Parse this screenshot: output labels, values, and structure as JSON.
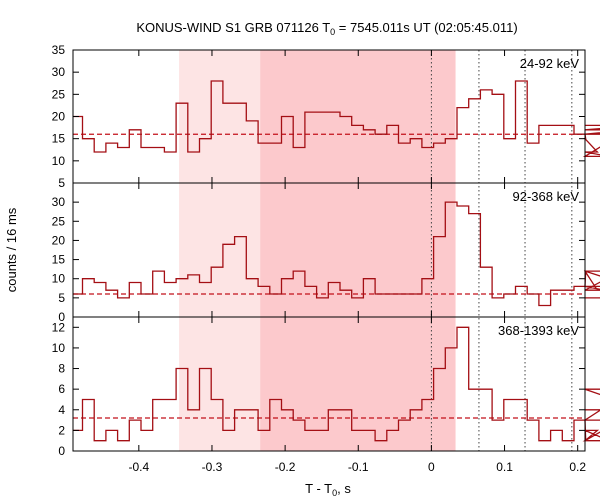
{
  "chart_data": {
    "type": "line",
    "title_main": "KONUS-WIND S1 GRB 071126 T",
    "title_sub": "0",
    "title_rest": " = 7545.011s UT (02:05:45.011)",
    "xlabel_main": "T - T",
    "xlabel_sub": "0",
    "xlabel_rest": ", s",
    "ylabel": "counts / 16 ms",
    "xlim": [
      -0.49,
      0.21
    ],
    "x_ticks": [
      -0.4,
      -0.3,
      -0.2,
      -0.1,
      0,
      0.1,
      0.2
    ],
    "x_tick_labels": [
      "-0.4",
      "-0.3",
      "-0.2",
      "-0.1",
      "0",
      "0.1",
      "0.2"
    ],
    "bin_width": 0.016,
    "bin_start": -0.493,
    "shaded_regions": [
      {
        "x0": -0.345,
        "x1": 0.033,
        "color": "#fde4e4"
      },
      {
        "x0": -0.234,
        "x1": 0.033,
        "color": "#fcc9cc"
      }
    ],
    "vlines": [
      0,
      0.065,
      0.128,
      0.192
    ],
    "line_color": "#a40f14",
    "bg_line_color": "#c2101a",
    "panels": [
      {
        "label": "24-92 keV",
        "ylim": [
          5,
          35
        ],
        "yticks": [
          5,
          10,
          15,
          20,
          25,
          30,
          35
        ],
        "background": 16,
        "values": [
          20,
          15,
          12,
          14,
          13,
          17,
          13,
          13,
          12,
          23,
          12,
          15,
          28,
          23,
          23,
          19,
          14,
          14,
          20,
          13,
          21,
          21,
          21,
          20,
          18,
          17,
          16,
          18,
          14,
          15,
          13,
          14,
          15,
          22,
          24,
          26,
          25,
          15,
          28,
          14,
          18,
          18,
          18,
          16,
          15,
          12,
          11,
          16,
          17,
          18
        ]
      },
      {
        "label": "92-368 keV",
        "ylim": [
          0,
          35
        ],
        "yticks": [
          0,
          5,
          10,
          15,
          20,
          25,
          30
        ],
        "background": 6,
        "values": [
          6,
          10,
          9,
          7,
          5,
          9,
          6,
          12,
          9,
          10,
          11,
          9,
          13,
          19,
          21,
          10,
          8,
          6,
          10,
          12,
          8,
          5,
          9,
          7,
          5,
          10,
          6,
          6,
          6,
          6,
          10,
          21,
          30,
          29,
          27,
          13,
          5,
          6,
          8,
          6,
          3,
          7,
          7,
          8,
          12,
          7,
          7,
          12,
          8,
          5
        ]
      },
      {
        "label": "368-1393 keV",
        "ylim": [
          0,
          13
        ],
        "yticks": [
          0,
          2,
          4,
          6,
          8,
          10,
          12
        ],
        "background": 3.2,
        "values": [
          2,
          5,
          1,
          2,
          1,
          3,
          2,
          5,
          5,
          8,
          4,
          8,
          5,
          2,
          4,
          4,
          2,
          5,
          4,
          3,
          2,
          2,
          4,
          4,
          2,
          2,
          1,
          2,
          3,
          4,
          5,
          8,
          10,
          12,
          6,
          6,
          3,
          5,
          5,
          3,
          1,
          2,
          1,
          3,
          1,
          2,
          1,
          3,
          6,
          4
        ]
      }
    ]
  }
}
